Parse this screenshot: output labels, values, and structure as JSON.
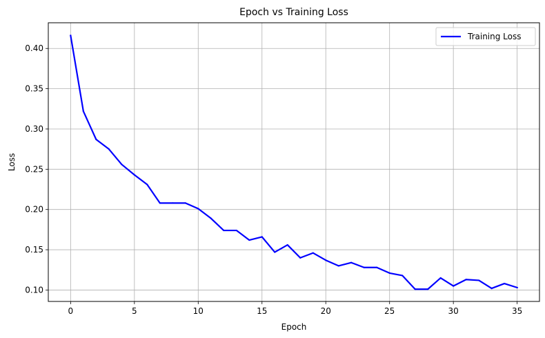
{
  "chart_data": {
    "type": "line",
    "title": "Epoch vs Training Loss",
    "xlabel": "Epoch",
    "ylabel": "Loss",
    "xlim": [
      -1.75,
      36.75
    ],
    "ylim": [
      0.0858,
      0.4319
    ],
    "xticks": [
      0,
      5,
      10,
      15,
      20,
      25,
      30,
      35
    ],
    "yticks": [
      0.1,
      0.15,
      0.2,
      0.25,
      0.3,
      0.35,
      0.4
    ],
    "ytick_labels": [
      "0.10",
      "0.15",
      "0.20",
      "0.25",
      "0.30",
      "0.35",
      "0.40"
    ],
    "grid": true,
    "legend_position": "top-right",
    "series": [
      {
        "name": "Training Loss",
        "color": "#0000ff",
        "x": [
          0,
          1,
          2,
          3,
          4,
          5,
          6,
          7,
          8,
          9,
          10,
          11,
          12,
          13,
          14,
          15,
          16,
          17,
          18,
          19,
          20,
          21,
          22,
          23,
          24,
          25,
          26,
          27,
          28,
          29,
          30,
          31,
          32,
          33,
          34,
          35
        ],
        "y": [
          0.416,
          0.322,
          0.287,
          0.275,
          0.256,
          0.243,
          0.231,
          0.208,
          0.208,
          0.208,
          0.201,
          0.189,
          0.174,
          0.174,
          0.162,
          0.166,
          0.147,
          0.156,
          0.14,
          0.146,
          0.137,
          0.13,
          0.134,
          0.128,
          0.128,
          0.121,
          0.118,
          0.101,
          0.101,
          0.115,
          0.105,
          0.113,
          0.112,
          0.102,
          0.108,
          0.103
        ]
      }
    ]
  }
}
